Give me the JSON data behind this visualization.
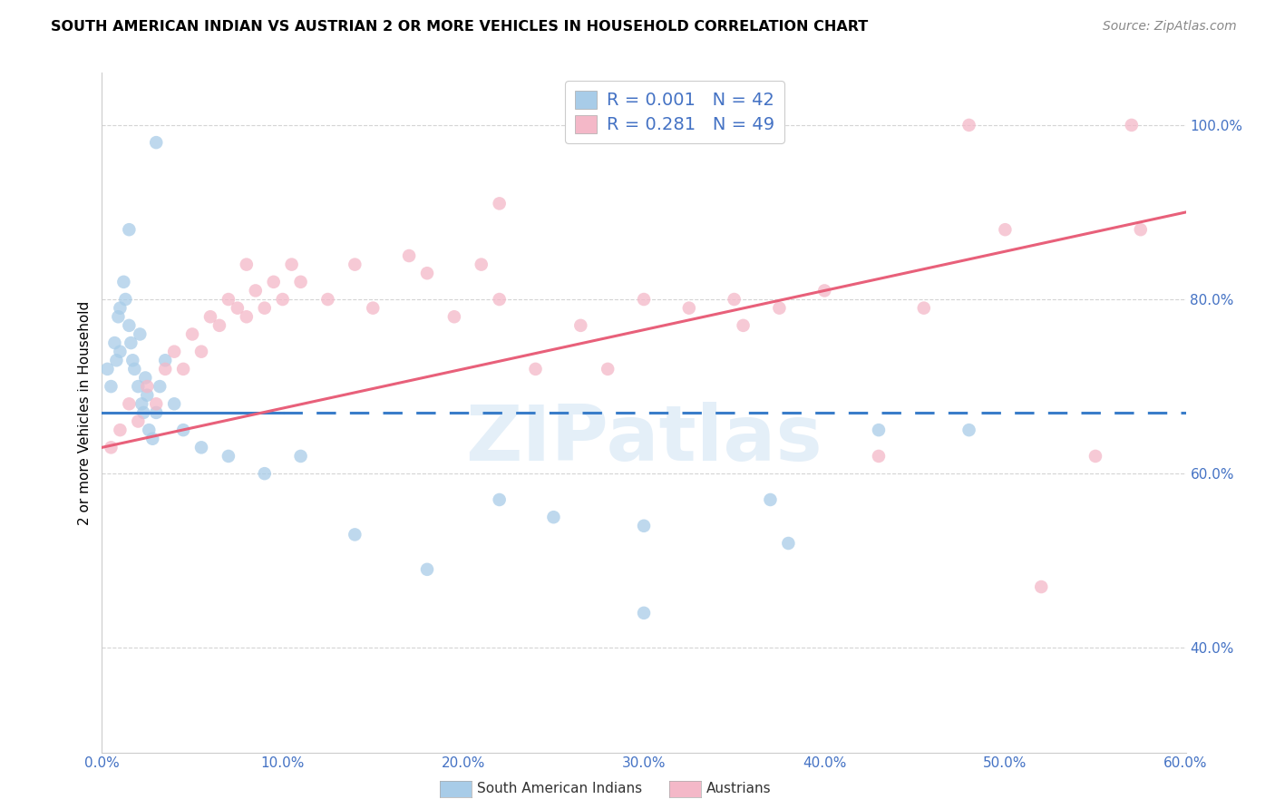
{
  "title": "SOUTH AMERICAN INDIAN VS AUSTRIAN 2 OR MORE VEHICLES IN HOUSEHOLD CORRELATION CHART",
  "source": "Source: ZipAtlas.com",
  "ylabel": "2 or more Vehicles in Household",
  "R1": "0.001",
  "N1": "42",
  "R2": "0.281",
  "N2": "49",
  "legend_label1": "South American Indians",
  "legend_label2": "Austrians",
  "blue_color": "#a8cce8",
  "pink_color": "#f4b8c8",
  "blue_line_color": "#3a7dc9",
  "pink_line_color": "#e8607a",
  "text_color": "#4472c4",
  "grid_color": "#d0d0d0",
  "xmin": 0.0,
  "xmax": 60.0,
  "ymin": 28.0,
  "ymax": 106.0,
  "ytick_vals": [
    40,
    60,
    80,
    100
  ],
  "xtick_vals": [
    0,
    10,
    20,
    30,
    40,
    50,
    60
  ],
  "watermark": "ZIPatlas",
  "blue_line_start_x": 0.0,
  "blue_line_solid_end_x": 10.0,
  "blue_line_end_x": 60.0,
  "blue_line_y": 67.0,
  "pink_line_x0": 0.0,
  "pink_line_y0": 63.0,
  "pink_line_x1": 60.0,
  "pink_line_y1": 90.0,
  "blue_x": [
    3.0,
    1.5,
    0.3,
    0.5,
    0.7,
    0.8,
    0.9,
    1.0,
    1.1,
    1.2,
    1.3,
    1.5,
    1.6,
    1.7,
    1.8,
    2.0,
    2.1,
    2.2,
    2.3,
    2.4,
    2.5,
    2.6,
    2.7,
    2.8,
    3.0,
    3.2,
    3.5,
    4.0,
    4.5,
    5.0,
    6.0,
    7.0,
    8.0,
    9.5,
    11.0,
    13.0,
    16.0,
    20.0,
    25.0,
    30.0,
    37.0,
    43.0
  ],
  "blue_y": [
    98.0,
    88.0,
    74.0,
    72.0,
    78.0,
    75.0,
    68.0,
    70.0,
    80.0,
    82.0,
    79.0,
    77.0,
    75.0,
    74.0,
    73.0,
    71.0,
    76.0,
    69.0,
    67.0,
    72.0,
    68.0,
    65.0,
    63.0,
    64.0,
    67.0,
    70.0,
    73.0,
    69.0,
    66.0,
    64.0,
    65.0,
    62.0,
    60.0,
    62.0,
    56.0,
    53.0,
    49.0,
    57.0,
    55.0,
    53.0,
    57.0,
    65.0
  ],
  "pink_x": [
    7.0,
    7.5,
    8.5,
    9.5,
    22.0,
    0.5,
    1.0,
    1.5,
    2.0,
    2.5,
    3.0,
    3.5,
    4.0,
    4.5,
    5.0,
    5.5,
    6.0,
    6.5,
    7.0,
    7.5,
    8.0,
    9.0,
    10.0,
    11.0,
    12.5,
    14.0,
    15.0,
    17.0,
    18.0,
    19.5,
    21.0,
    24.0,
    26.5,
    28.0,
    30.0,
    32.5,
    35.0,
    37.5,
    40.0,
    43.0,
    45.5,
    48.0,
    50.0,
    52.0,
    55.0,
    30.0,
    35.0,
    25.0,
    20.0
  ],
  "pink_y": [
    80.0,
    84.0,
    79.0,
    82.0,
    91.0,
    65.0,
    63.0,
    68.0,
    66.0,
    71.0,
    69.0,
    73.0,
    75.0,
    72.0,
    77.0,
    74.0,
    79.0,
    77.0,
    80.0,
    78.0,
    76.0,
    80.0,
    78.0,
    82.0,
    80.0,
    83.0,
    79.0,
    85.0,
    83.0,
    78.0,
    84.0,
    72.0,
    77.0,
    72.0,
    80.0,
    79.0,
    80.0,
    79.0,
    81.0,
    62.0,
    79.0,
    100.0,
    88.0,
    47.0,
    62.0,
    80.0,
    80.0,
    80.0,
    75.0
  ]
}
